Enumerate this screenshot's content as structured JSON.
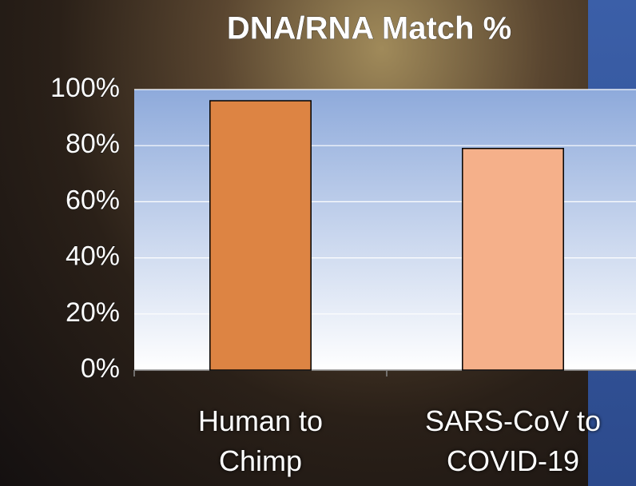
{
  "chart_data": {
    "type": "bar",
    "title": "DNA/RNA Match %",
    "categories": [
      "Human to Chimp",
      "SARS-CoV to COVID-19"
    ],
    "values": [
      96,
      79
    ],
    "colors": [
      "#dd8443",
      "#f5b08a"
    ],
    "ylim": [
      0,
      100
    ],
    "yticks": [
      {
        "value": 0,
        "label": "0%"
      },
      {
        "value": 20,
        "label": "20%"
      },
      {
        "value": 40,
        "label": "40%"
      },
      {
        "value": 60,
        "label": "60%"
      },
      {
        "value": 80,
        "label": "80%"
      },
      {
        "value": 100,
        "label": "100%"
      }
    ],
    "grid": true
  }
}
